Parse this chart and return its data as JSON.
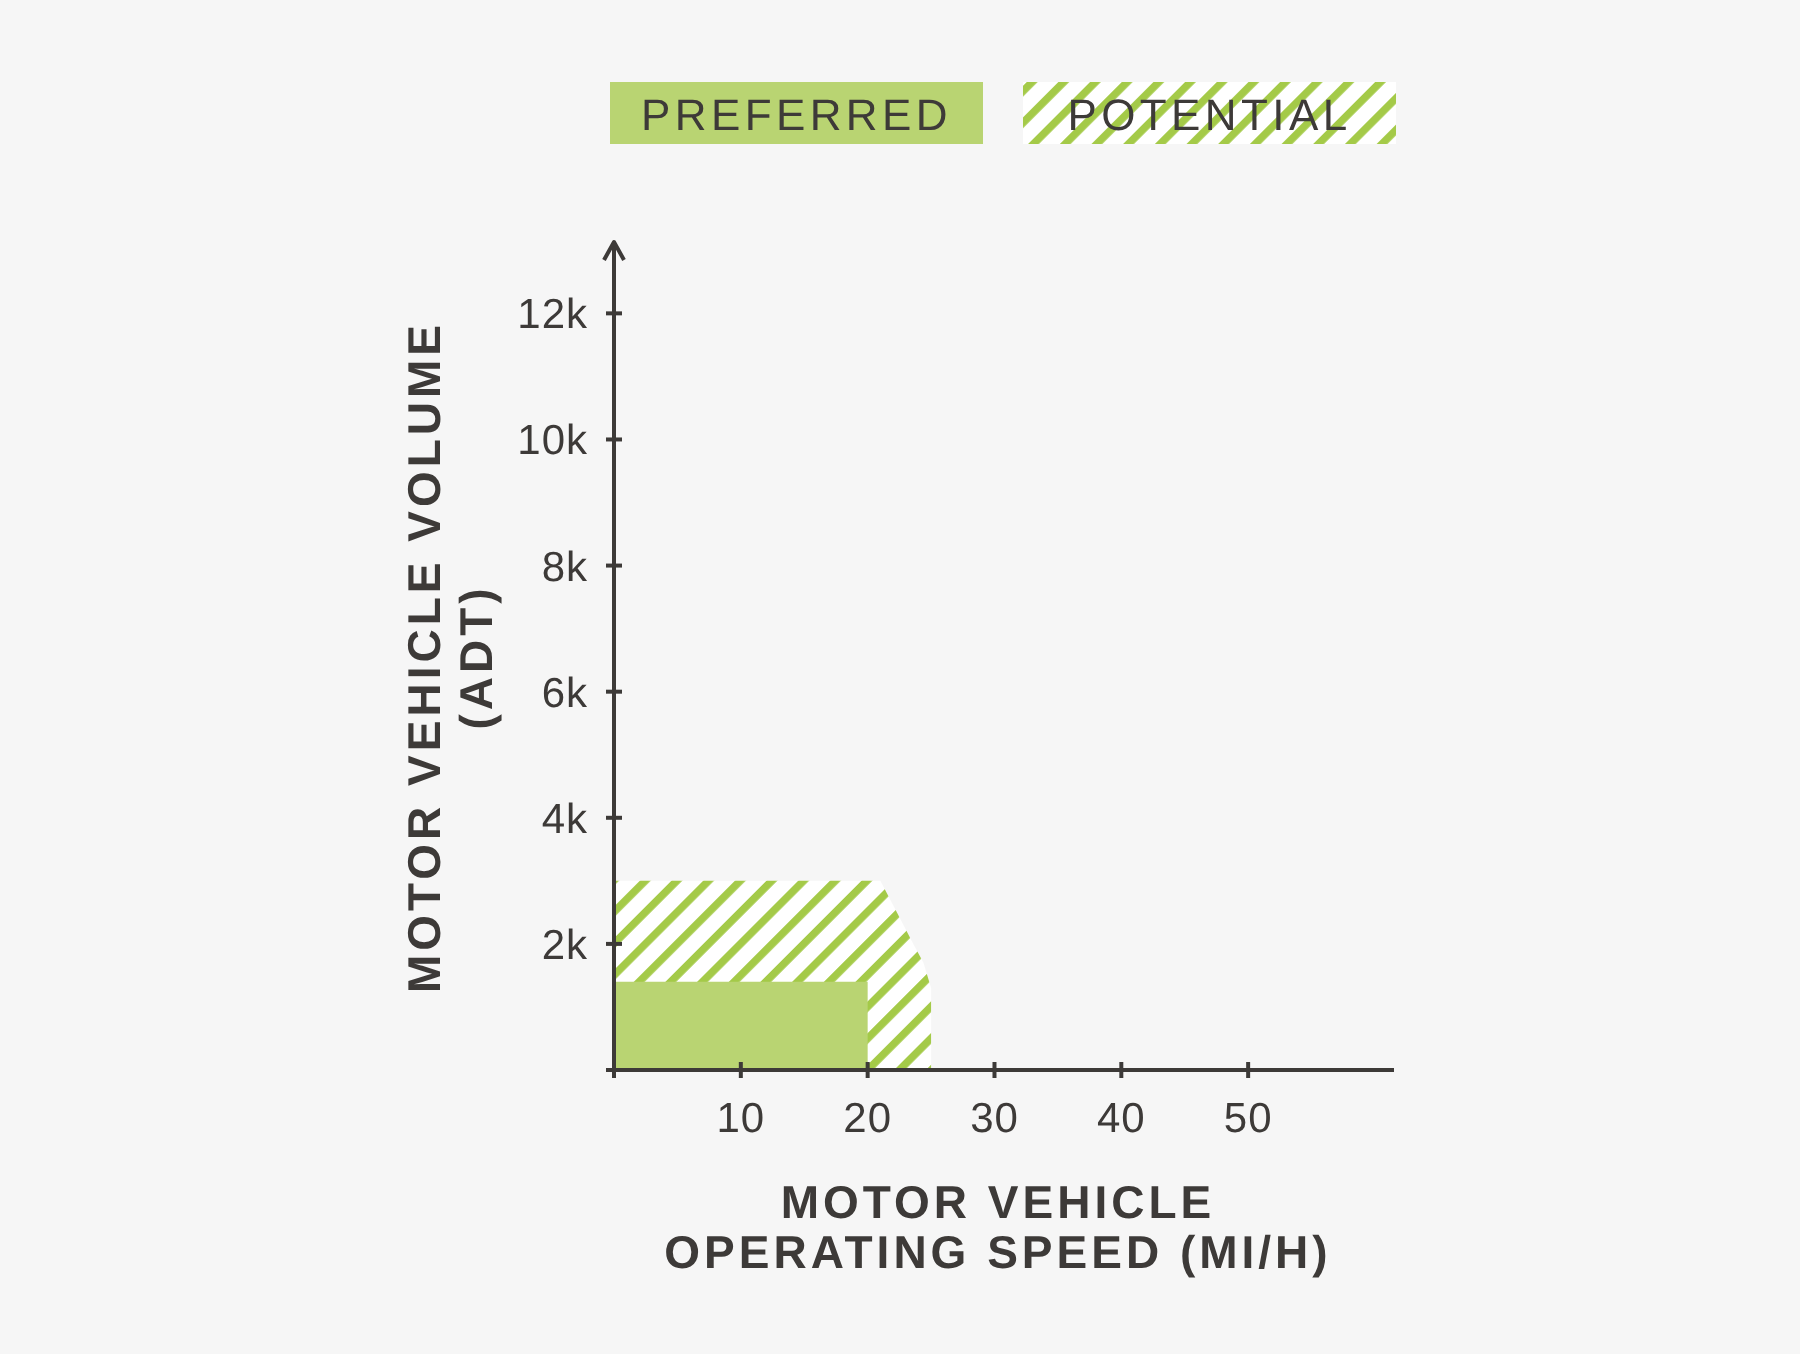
{
  "chart_data": {
    "type": "area",
    "legend": "top",
    "xlabel": "MOTOR VEHICLE\nOPERATING SPEED (MI/H)",
    "ylabel": "MOTOR VEHICLE VOLUME\n(ADT)",
    "xlim": [
      0,
      61.5
    ],
    "xticks": [
      {
        "value": 0,
        "label": null
      },
      10,
      20,
      30,
      40,
      50
    ],
    "ylim": [
      0,
      13100
    ],
    "yticks": [
      {
        "value": 0,
        "label": null
      },
      {
        "value": 2000,
        "label": "2k"
      },
      {
        "value": 4000,
        "label": "4k"
      },
      {
        "value": 6000,
        "label": "6k"
      },
      {
        "value": 8000,
        "label": "8k"
      },
      {
        "value": 10000,
        "label": "10k"
      },
      {
        "value": 12000,
        "label": "12k"
      }
    ],
    "series": [
      {
        "name": "PREFERRED",
        "color": "#b9d472",
        "x": [
          0,
          20,
          20
        ],
        "values": [
          1400,
          1400,
          0
        ]
      },
      {
        "name": "POTENTIAL",
        "color": "#a4ca48",
        "x": [
          0,
          21,
          22.3,
          23.6,
          24.4,
          25,
          25
        ],
        "values": [
          3000,
          3000,
          2500,
          2000,
          1700,
          1300,
          0
        ]
      }
    ]
  }
}
